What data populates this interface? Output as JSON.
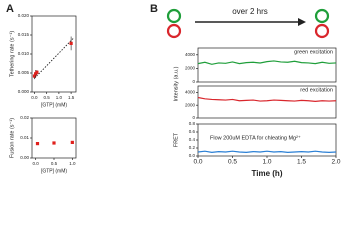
{
  "panel_labels": [
    "A",
    "B"
  ],
  "note": "over 2 hrs",
  "chart_data": [
    {
      "type": "scatter",
      "y_label": "Tethering rate (s⁻¹)",
      "x_label": "[GTP] (mM)",
      "color": "#e0201c",
      "x": [
        0,
        0.05,
        0.1,
        1.5
      ],
      "values": [
        0.0042,
        0.0048,
        0.0052,
        0.0128
      ],
      "errors": [
        0.0008,
        0.001,
        0.0006,
        0.0018
      ],
      "fit": {
        "x": [
          0,
          1.6
        ],
        "values": [
          0.0036,
          0.0142
        ]
      },
      "xlim": [
        -0.1,
        1.7
      ],
      "xticks": [
        {
          "value": 0,
          "label": "0.0"
        },
        0.5,
        {
          "value": 1,
          "label": "1.0"
        },
        1.5
      ],
      "ylim": [
        0,
        0.02
      ],
      "yticks": [
        {
          "value": 0,
          "label": "0.000"
        },
        {
          "value": 0.005,
          "label": "0.005"
        },
        {
          "value": 0.01,
          "label": "0.010"
        },
        {
          "value": 0.015,
          "label": "0.015"
        },
        {
          "value": 0.02,
          "label": "0.020"
        }
      ]
    },
    {
      "type": "scatter",
      "y_label": "Fusion rate (s⁻¹)",
      "x_label": "[GTP] (mM)",
      "color": "#e0201c",
      "x": [
        0.05,
        0.5,
        1.0
      ],
      "values": [
        0.0072,
        0.0075,
        0.0078
      ],
      "xlim": [
        -0.1,
        1.1
      ],
      "xticks": [
        {
          "value": 0,
          "label": "0.0"
        },
        0.5,
        {
          "value": 1,
          "label": "1.0"
        }
      ],
      "ylim": [
        0,
        0.02
      ],
      "yticks": [
        {
          "value": 0,
          "label": "0.00"
        },
        {
          "value": 0.01,
          "label": "0.01"
        },
        {
          "value": 0.02,
          "label": "0.02"
        }
      ]
    },
    {
      "type": "line",
      "y_label": "Intensity (a.u.)",
      "annotation": "green excitation",
      "color": "#1f9e3a",
      "x": [
        0,
        0.1,
        0.2,
        0.3,
        0.4,
        0.5,
        0.6,
        0.7,
        0.8,
        0.9,
        1.0,
        1.1,
        1.2,
        1.3,
        1.4,
        1.5,
        1.6,
        1.7,
        1.8,
        1.9,
        2.0
      ],
      "values": [
        2700,
        2900,
        2600,
        2800,
        2750,
        2950,
        2700,
        2850,
        2900,
        2800,
        3000,
        3100,
        2950,
        2900,
        3050,
        2850,
        2800,
        2700,
        2900,
        2750,
        2800
      ],
      "xlim": [
        0,
        2
      ],
      "ylim": [
        0,
        5000
      ],
      "yticks": [
        0,
        2000,
        4000
      ]
    },
    {
      "type": "line",
      "annotation": "red excitation",
      "color": "#d9262c",
      "x": [
        0,
        0.1,
        0.2,
        0.3,
        0.4,
        0.5,
        0.6,
        0.7,
        0.8,
        0.9,
        1.0,
        1.1,
        1.2,
        1.3,
        1.4,
        1.5,
        1.6,
        1.7,
        1.8,
        1.9,
        2.0
      ],
      "values": [
        3200,
        3000,
        2900,
        2850,
        2800,
        2900,
        2700,
        2750,
        2800,
        2650,
        2700,
        2800,
        2750,
        2700,
        2650,
        2750,
        2700,
        2600,
        2700,
        2650,
        2700
      ],
      "xlim": [
        0,
        2
      ],
      "ylim": [
        0,
        5000
      ],
      "yticks": [
        0,
        2000,
        4000
      ]
    },
    {
      "type": "line",
      "y_label": "FRET",
      "x_label": "Time (h)",
      "annotation": "Flow 200uM EDTA for chleating Mg²⁺",
      "color": "#2a7fd4",
      "x": [
        0,
        0.1,
        0.2,
        0.3,
        0.4,
        0.5,
        0.6,
        0.7,
        0.8,
        0.9,
        1.0,
        1.1,
        1.2,
        1.3,
        1.4,
        1.5,
        1.6,
        1.7,
        1.8,
        1.9,
        2.0
      ],
      "values": [
        0.1,
        0.12,
        0.09,
        0.11,
        0.1,
        0.12,
        0.1,
        0.09,
        0.11,
        0.1,
        0.12,
        0.1,
        0.11,
        0.09,
        0.1,
        0.11,
        0.1,
        0.12,
        0.1,
        0.09,
        0.1
      ],
      "xlim": [
        0,
        2
      ],
      "xticks": [
        {
          "value": 0,
          "label": "0.0"
        },
        0.5,
        {
          "value": 1,
          "label": "1.0"
        },
        1.5,
        {
          "value": 2,
          "label": "2.0"
        }
      ],
      "ylim": [
        0,
        0.8
      ],
      "yticks": [
        {
          "value": 0,
          "label": "0.0"
        },
        0.2,
        0.4,
        0.6,
        0.8
      ]
    }
  ]
}
